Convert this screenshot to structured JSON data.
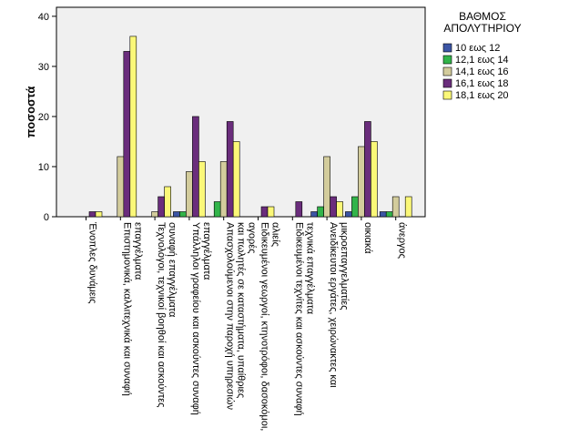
{
  "chart_data": {
    "type": "bar",
    "y_label": "ποσοστά",
    "legend_title": [
      "ΒΑΘΜΟΣ",
      "ΑΠΟΛΥΤΗΡΙΟΥ"
    ],
    "categories": [
      [
        "Ένοπλες δυνάμεις"
      ],
      [
        "Επιστημονικά, καλλιτεχνικά και συναφή",
        "επαγγέλματα"
      ],
      [
        "Τεχνολόγοι, τεχνικοί βοηθοί και ασκούντες",
        "συναφή επαγγέλματα"
      ],
      [
        "Υπάλληλοι γραφείου και ασκούντες συναφή",
        "επαγγέλματα"
      ],
      [
        "Απασχολούμενοι στην παροχή υπηρεσιών",
        "και πωλητές σε καταστήματα, υπαίθριες",
        "αγορές"
      ],
      [
        "Ειδικευμένοι γεωργοί, κτηνοτρόφοι, δασοκόμοι,",
        "αλιείς"
      ],
      [
        "Ειδικευμένοι τεχνίτες και ασκούντες συναφή",
        "τεχνικά επαγγέλματα"
      ],
      [
        "Ανειδίκευτοι εργάτες, χειρώνακτες και",
        "μικροεπαγγελματίες"
      ],
      [
        "οικιακά"
      ],
      [
        "άνεργος"
      ]
    ],
    "series": [
      {
        "name": "10 εως 12",
        "color": "#3c55a5",
        "values": [
          0,
          0,
          0,
          1,
          0,
          0,
          0,
          1,
          1,
          1
        ]
      },
      {
        "name": "12,1 εως 14",
        "color": "#32b44a",
        "values": [
          0,
          0,
          0,
          1,
          3,
          0,
          0,
          2,
          4,
          1
        ]
      },
      {
        "name": "14,1 εως 16",
        "color": "#d3cc9c",
        "values": [
          0,
          12,
          1,
          9,
          11,
          0,
          0,
          12,
          14,
          4
        ]
      },
      {
        "name": "16,1 εως 18",
        "color": "#6a2d7c",
        "values": [
          1,
          33,
          4,
          20,
          19,
          2,
          3,
          4,
          19,
          0
        ]
      },
      {
        "name": "18,1 εως 20",
        "color": "#fbf878",
        "values": [
          1,
          36,
          6,
          11,
          15,
          2,
          0,
          3,
          15,
          4
        ]
      }
    ],
    "ylim": [
      0,
      41.8
    ],
    "yticks": [
      0,
      10,
      20,
      30,
      40
    ]
  }
}
